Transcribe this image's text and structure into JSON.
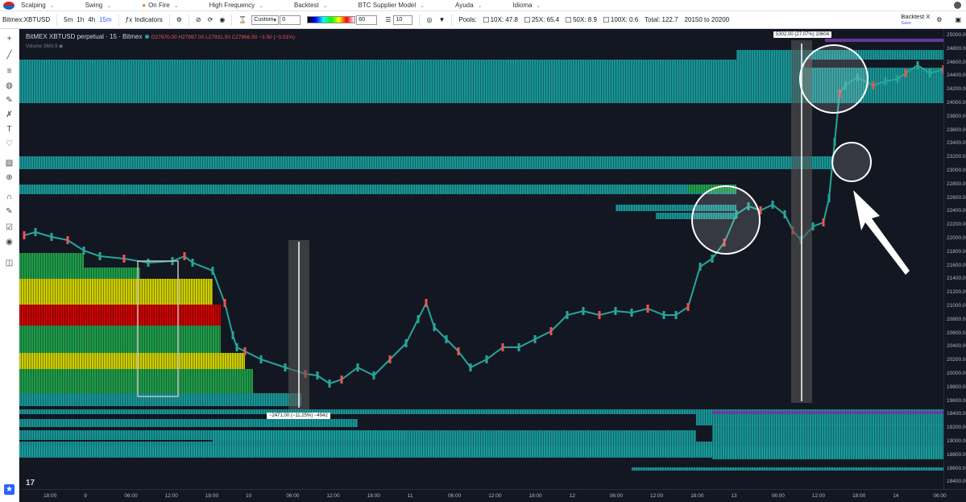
{
  "nav": {
    "items": [
      "Scalping",
      "Swing",
      "On Fire",
      "High Frequency",
      "Backtest",
      "BTC Supplier Model",
      "Ayuda",
      "Idioma"
    ]
  },
  "toolbar": {
    "symbol": "Bitmex:XBTUSD",
    "intervals": [
      "5m",
      "1h",
      "4h",
      "15m"
    ],
    "active_interval": "15m",
    "indicators_label": "Indicators",
    "custom_select": "Custom",
    "custom_value": "0",
    "gradient_value": "60",
    "layers_value": "10",
    "pools_label": "Pools:",
    "pool_10x": "10X: 47.8",
    "pool_25x": "25X: 65.4",
    "pool_50x": "50X: 8.9",
    "pool_100x": "100X: 0.6",
    "total": "Total: 122.7",
    "range": "20150 to 20200",
    "backtest_label": "Backtest X",
    "save_label": "Save"
  },
  "legend": {
    "title": "BitMEX XBTUSD perpetual · 15 · Bitmex",
    "ohlc": "O27970.00 H27997.00 L27931.50 C27966.50 −3.50 (−0.01%)",
    "volume": "Volume SMA 9"
  },
  "price_axis": [
    "25000.00",
    "24800.00",
    "24600.00",
    "24400.00",
    "24200.00",
    "24000.00",
    "23800.00",
    "23600.00",
    "23400.00",
    "23200.00",
    "23000.00",
    "22800.00",
    "22600.00",
    "22400.00",
    "22200.00",
    "22000.00",
    "21800.00",
    "21600.00",
    "21400.00",
    "21200.00",
    "21000.00",
    "20800.00",
    "20600.00",
    "20400.00",
    "20200.00",
    "20000.00",
    "19800.00",
    "19600.00",
    "19400.00",
    "19200.00",
    "19000.00",
    "18800.00",
    "18600.00",
    "18400.00"
  ],
  "time_axis": [
    "18:00",
    "9",
    "06:00",
    "12:00",
    "18:00",
    "10",
    "06:00",
    "12:00",
    "18:00",
    "11",
    "06:00",
    "12:00",
    "18:00",
    "12",
    "06:00",
    "12:00",
    "18:00",
    "13",
    "06:00",
    "12:00",
    "18:00",
    "14",
    "06:00"
  ],
  "measure_up": "5302.00 (27.07%) 10604",
  "measure_down": "−2471.00 (−11.25%) −4942",
  "colors": {
    "bg": "#131722",
    "teal": "#1f9c9c",
    "green": "#1fa34a",
    "yellow": "#d4d400",
    "red": "#d10000",
    "purple": "#6a3b9e",
    "candle_up": "#26a69a",
    "candle_down": "#ef5350"
  }
}
